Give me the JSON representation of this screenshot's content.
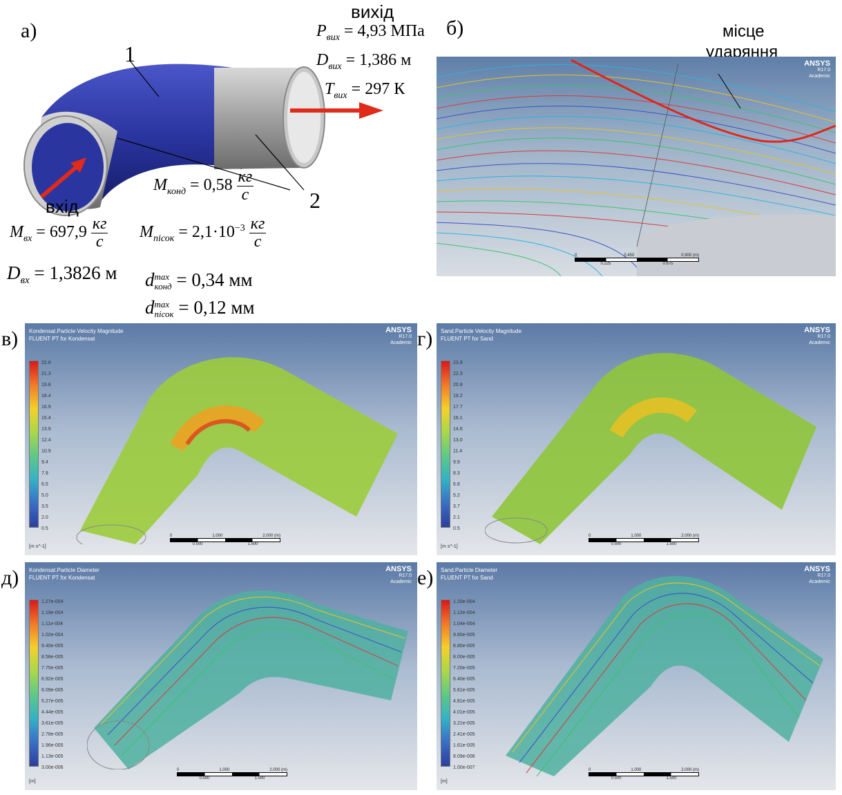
{
  "panel_labels": {
    "a": "а)",
    "b": "б)",
    "v": "в)",
    "g": "г)",
    "d": "д)",
    "e": "е)"
  },
  "panel_a": {
    "outlet_word": "вихід",
    "inlet_word": "вхід",
    "label_1": "1",
    "label_2": "2",
    "P_out": "P",
    "P_out_sub": "вих",
    "P_out_val": "= 4,93 МПа",
    "D_out": "D",
    "D_out_sub": "вих",
    "D_out_val": "= 1,386 м",
    "T_out": "T",
    "T_out_sub": "вих",
    "T_out_val": "= 297 К",
    "M_cond": "M",
    "M_cond_sub": "конд",
    "M_cond_val": "= 0,58",
    "M_cond_num": "кг",
    "M_cond_den": "с",
    "M_in": "M",
    "M_in_sub": "вх",
    "M_in_val": "= 697,9",
    "M_in_num": "кг",
    "M_in_den": "с",
    "M_sand": "M",
    "M_sand_sub": "пісок",
    "M_sand_val": "= 2,1·10",
    "M_sand_exp": "−3",
    "M_sand_num": "кг",
    "M_sand_den": "с",
    "D_in": "D",
    "D_in_sub": "вх",
    "D_in_val": "= 1,3826 м",
    "d_cond": "d",
    "d_cond_sup": "max",
    "d_cond_sub": "конд",
    "d_cond_val": "= 0,34 мм",
    "d_sand": "d",
    "d_sand_sup": "max",
    "d_sand_sub": "пісок",
    "d_sand_val": "= 0,12 мм",
    "colors": {
      "pipe_blue": "#2a35a0",
      "pipe_grey": "#a8a8a8",
      "arrow": "#e02a1a"
    }
  },
  "panel_b": {
    "annotation_line1": "місце",
    "annotation_line2": "ударяння",
    "brand": "ANSYS",
    "version": "R17.0",
    "edition": "Academic",
    "scale_top": [
      "0",
      "0.450",
      "0.900 (m)"
    ],
    "scale_bottom": [
      "0.225",
      "0.675"
    ],
    "impact_line_color": "#e0261a"
  },
  "panel_v": {
    "title1": "Kondensat.Particle Velocity Magnitude",
    "title2": "FLUENT PT for Kondensat",
    "brand": "ANSYS",
    "version": "R17.0",
    "edition": "Academic",
    "legend": [
      "22.8",
      "21.3",
      "19.8",
      "18.4",
      "16.9",
      "15.4",
      "13.9",
      "12.4",
      "10.9",
      "9.4",
      "7.9",
      "6.5",
      "5.0",
      "3.5",
      "2.0",
      "0.5"
    ],
    "unit": "[m s^-1]",
    "scale_top": [
      "0",
      "1.000",
      "2.000 (m)"
    ],
    "scale_bottom": [
      "0.500",
      "1.500"
    ]
  },
  "panel_g": {
    "title1": "Sand.Particle Velocity Magnitude",
    "title2": "FLUENT PT for Sand",
    "brand": "ANSYS",
    "version": "R17.0",
    "edition": "Academic",
    "legend": [
      "23.9",
      "22.3",
      "20.8",
      "19.2",
      "17.7",
      "16.1",
      "14.6",
      "13.0",
      "11.4",
      "9.9",
      "8.3",
      "6.8",
      "5.2",
      "3.7",
      "2.1",
      "0.5"
    ],
    "unit": "[m s^-1]",
    "scale_top": [
      "0",
      "1.000",
      "2.000 (m)"
    ],
    "scale_bottom": [
      "0.500",
      "1.500"
    ]
  },
  "panel_d": {
    "title1": "Kondensat.Particle Diameter",
    "title2": "FLUENT PT for Kondensat",
    "brand": "ANSYS",
    "version": "R17.0",
    "edition": "Academic",
    "legend": [
      "1.27e-004",
      "1.19e-004",
      "1.11e-004",
      "1.02e-004",
      "9.40e-005",
      "8.58e-005",
      "7.75e-005",
      "6.92e-005",
      "6.09e-005",
      "5.27e-005",
      "4.44e-005",
      "3.61e-005",
      "2.78e-005",
      "1.96e-005",
      "1.13e-005",
      "3.00e-006"
    ],
    "unit": "[m]",
    "scale_top": [
      "0",
      "1.000",
      "2.000 (m)"
    ],
    "scale_bottom": [
      "0.500",
      "1.500"
    ]
  },
  "panel_e": {
    "title1": "Sand.Particle Diameter",
    "title2": "FLUENT PT for Sand",
    "brand": "ANSYS",
    "version": "R17.0",
    "edition": "Academic",
    "legend": [
      "1.20e-004",
      "1.12e-004",
      "1.04e-004",
      "9.60e-005",
      "8.80e-005",
      "8.00e-005",
      "7.20e-005",
      "6.40e-005",
      "5.61e-005",
      "4.81e-005",
      "4.01e-005",
      "3.21e-005",
      "2.41e-005",
      "1.61e-005",
      "8.09e-006",
      "1.00e-007"
    ],
    "unit": "[m]",
    "scale_top": [
      "0",
      "1.000",
      "2.000 (m)"
    ],
    "scale_bottom": [
      "0.500",
      "1.500"
    ]
  }
}
